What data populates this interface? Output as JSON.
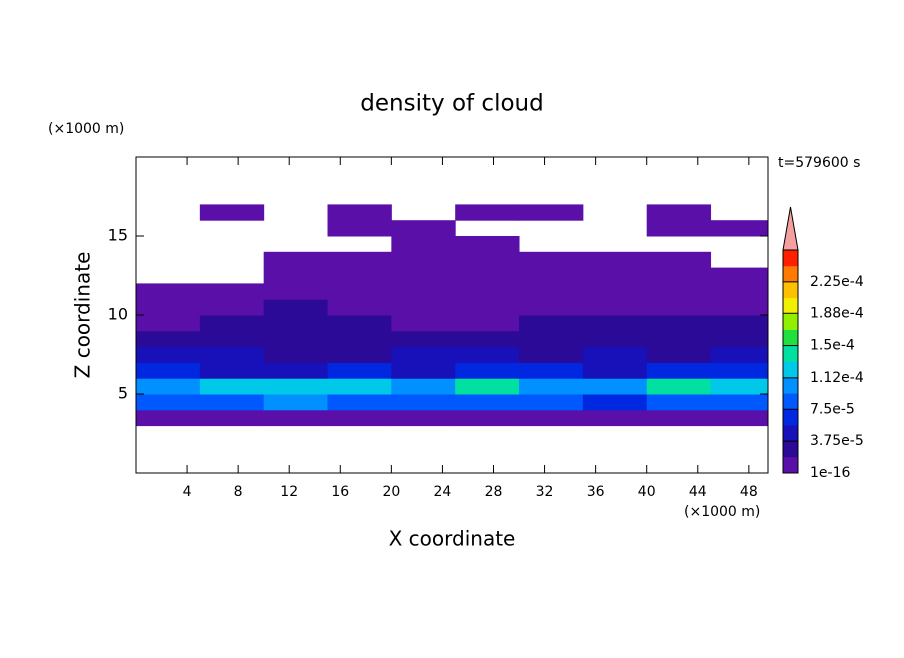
{
  "chart_data": {
    "type": "contour",
    "title": "density of cloud",
    "x_label": "X coordinate",
    "y_label": "Z coordinate",
    "x_unit": "(×1000 m)",
    "y_unit": "(×1000 m)",
    "time_label": "t=579600 s",
    "xlim": [
      0,
      49.5
    ],
    "ylim": [
      0,
      20
    ],
    "xticks": [
      4,
      8,
      12,
      16,
      20,
      24,
      28,
      32,
      36,
      40,
      44,
      48
    ],
    "yticks": [
      5,
      10,
      15
    ],
    "x": [
      2.5,
      7.5,
      12.5,
      17.5,
      22.5,
      27.5,
      32.5,
      37.5,
      42.5,
      47.5
    ],
    "z": [
      3.5,
      4.5,
      5.5,
      6.5,
      7.5,
      8.5,
      9.5,
      10.5,
      11.5,
      12.5,
      13.5,
      14.5,
      15.5,
      16.5
    ],
    "values": [
      [
        5e-06,
        5e-06,
        5e-06,
        5e-06,
        5e-06,
        5e-06,
        5e-06,
        5e-06,
        5e-06,
        5e-06
      ],
      [
        8e-05,
        9e-05,
        0.0001,
        8e-05,
        9e-05,
        9e-05,
        8e-05,
        7e-05,
        9e-05,
        8e-05
      ],
      [
        0.00011,
        0.00012,
        0.00013,
        0.00012,
        0.00011,
        0.00015,
        0.00011,
        0.0001,
        0.00014,
        0.00013
      ],
      [
        6e-05,
        5e-05,
        5e-05,
        6e-05,
        5e-05,
        6e-05,
        6e-05,
        5e-05,
        6e-05,
        7e-05
      ],
      [
        4e-05,
        4e-05,
        2e-05,
        2e-05,
        4e-05,
        4e-05,
        2e-05,
        4e-05,
        2e-05,
        4e-05
      ],
      [
        2e-05,
        2e-05,
        2e-05,
        2e-05,
        2e-05,
        2e-05,
        2e-05,
        2e-05,
        2e-05,
        2e-05
      ],
      [
        5e-06,
        2e-05,
        2e-05,
        2e-05,
        5e-06,
        5e-06,
        2e-05,
        2e-05,
        2e-05,
        2e-05
      ],
      [
        5e-06,
        5e-06,
        2e-05,
        5e-06,
        5e-06,
        5e-06,
        5e-06,
        5e-06,
        5e-06,
        5e-06
      ],
      [
        5e-06,
        5e-06,
        5e-06,
        5e-06,
        5e-06,
        5e-06,
        5e-06,
        5e-06,
        5e-06,
        5e-06
      ],
      [
        null,
        null,
        5e-06,
        5e-06,
        5e-06,
        5e-06,
        5e-06,
        5e-06,
        5e-06,
        5e-06
      ],
      [
        null,
        null,
        5e-06,
        5e-06,
        5e-06,
        5e-06,
        5e-06,
        5e-06,
        5e-06,
        null
      ],
      [
        null,
        null,
        null,
        null,
        5e-06,
        5e-06,
        null,
        null,
        null,
        null
      ],
      [
        null,
        null,
        null,
        5e-06,
        5e-06,
        null,
        null,
        null,
        5e-06,
        5e-06
      ],
      [
        null,
        5e-06,
        null,
        5e-06,
        null,
        5e-06,
        5e-06,
        null,
        5e-06,
        null
      ]
    ],
    "colorbar": {
      "lim": [
        1e-16,
        0.0002625
      ],
      "ticks": [
        {
          "value": 1e-16,
          "label": "1e-16"
        },
        {
          "value": 3.75e-05,
          "label": "3.75e-5"
        },
        {
          "value": 7.5e-05,
          "label": "7.5e-5"
        },
        {
          "value": 0.000112,
          "label": "1.12e-4"
        },
        {
          "value": 0.00015,
          "label": "1.5e-4"
        },
        {
          "value": 0.000188,
          "label": "1.88e-4"
        },
        {
          "value": 0.000225,
          "label": "2.25e-4"
        }
      ],
      "colors": [
        "#5a10a8",
        "#2a0a96",
        "#1810b8",
        "#0028e0",
        "#0058ff",
        "#0090ff",
        "#00c8e8",
        "#00e0a0",
        "#20e040",
        "#90f000",
        "#f0f000",
        "#ffc000",
        "#ff7a00",
        "#ff2000"
      ],
      "extend": "max",
      "over_color": "#f4a0a0"
    }
  }
}
